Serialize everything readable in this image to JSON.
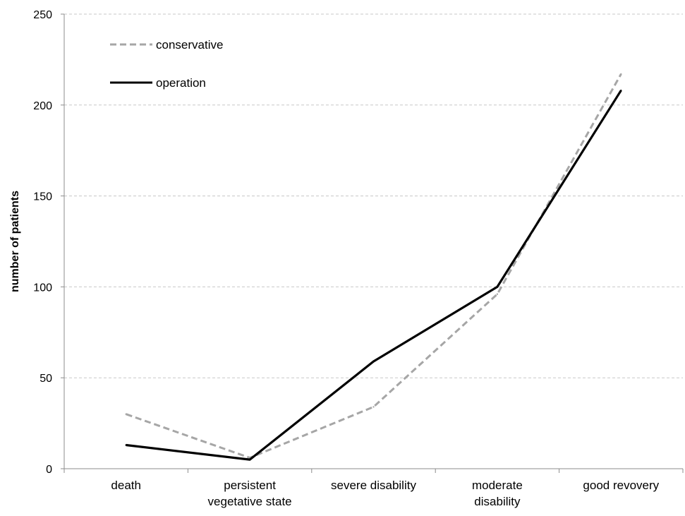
{
  "chart_data": {
    "type": "line",
    "title": "",
    "xlabel": "",
    "ylabel": "number of patients",
    "ylim": [
      0,
      250
    ],
    "yticks": [
      "0",
      "50",
      "100",
      "150",
      "200",
      "250"
    ],
    "grid": "horizontal dashed",
    "legend_position": "top-left",
    "categories": [
      [
        "death"
      ],
      [
        "persistent",
        "vegetative state"
      ],
      [
        "severe disability"
      ],
      [
        "moderate",
        "disability"
      ],
      [
        "good revovery"
      ]
    ],
    "series": [
      {
        "name": "conservative",
        "values": [
          30,
          6,
          34,
          96,
          217
        ],
        "color": "#a6a6a6",
        "dash": true
      },
      {
        "name": "operation",
        "values": [
          13,
          5,
          59,
          100,
          208
        ],
        "color": "#000000",
        "dash": false
      }
    ]
  }
}
